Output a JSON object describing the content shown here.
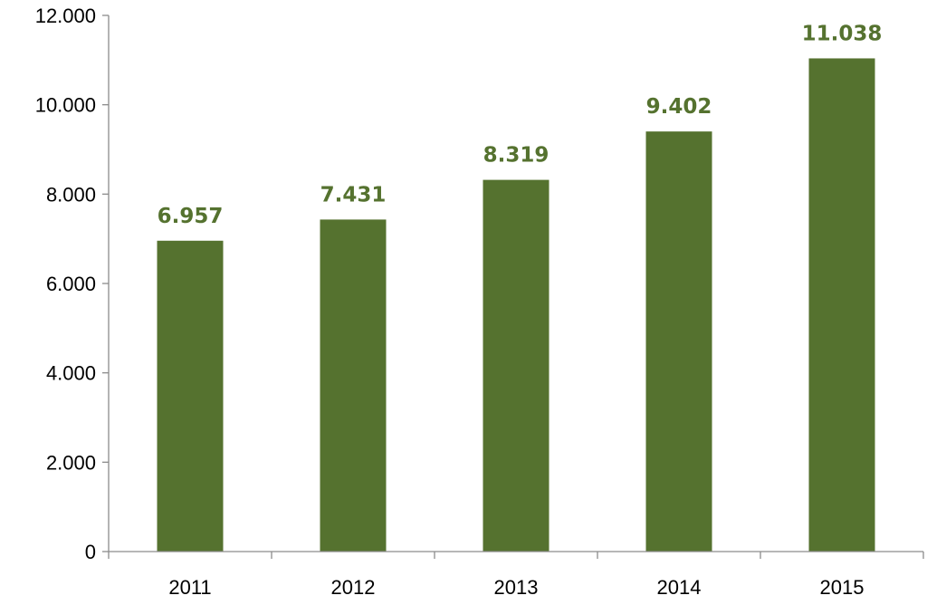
{
  "chart_data": {
    "type": "bar",
    "title": "",
    "xlabel": "",
    "ylabel": "",
    "categories": [
      "2011",
      "2012",
      "2013",
      "2014",
      "2015"
    ],
    "values": [
      6957,
      7431,
      8319,
      9402,
      11038
    ],
    "value_labels": [
      "6.957",
      "7.431",
      "8.319",
      "9.402",
      "11.038"
    ],
    "ylim": [
      0,
      12000
    ],
    "yticks": [
      0,
      2000,
      4000,
      6000,
      8000,
      10000,
      12000
    ],
    "ytick_labels": [
      "0",
      "2.000",
      "4.000",
      "6.000",
      "8.000",
      "10.000",
      "12.000"
    ],
    "grid": false,
    "legend": "none",
    "bar_color": "#55722f",
    "label_color": "#55722f"
  }
}
